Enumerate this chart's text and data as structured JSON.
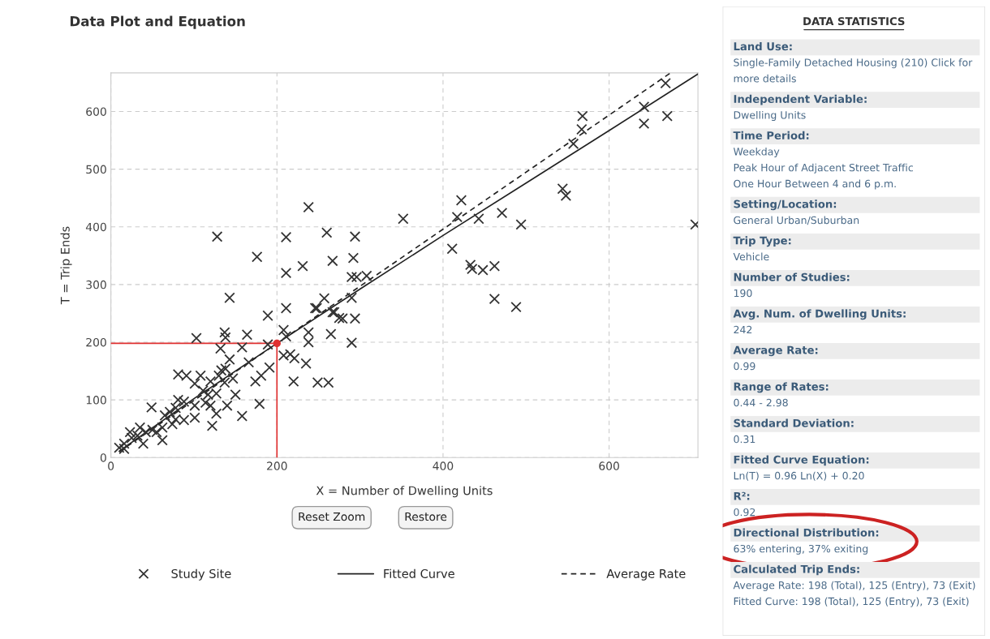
{
  "chart_data": [
    {
      "type": "scatter",
      "title": "Data Plot and Equation",
      "xlabel": "X = Number of Dwelling Units",
      "ylabel": "T = Trip Ends",
      "xlim": [
        0,
        707
      ],
      "ylim": [
        0,
        667
      ],
      "xticks": [
        0,
        200,
        400,
        600
      ],
      "yticks": [
        0,
        100,
        200,
        300,
        400,
        500,
        600
      ],
      "grid": true,
      "legend": "bottom",
      "annotations": [
        "Reset Zoom",
        "Restore"
      ],
      "series": [
        {
          "name": "Study Site",
          "type": "scatter",
          "marker": "cross",
          "color": "#333333",
          "x": [
            128,
            143,
            176,
            211,
            211,
            231,
            238,
            260,
            267,
            292,
            294,
            290,
            296,
            308,
            257,
            290,
            422,
            417,
            443,
            471,
            494,
            352,
            411,
            433,
            435,
            448,
            462,
            462,
            488,
            544,
            548,
            557,
            567,
            568,
            642,
            642,
            668,
            670,
            704,
            189,
            211,
            248,
            267,
            275,
            279,
            294,
            265,
            238,
            238,
            290,
            208,
            211,
            103,
            137,
            138,
            164,
            132,
            158,
            189,
            208,
            216,
            221,
            235,
            220,
            249,
            262,
            143,
            138,
            166,
            181,
            174,
            191,
            179,
            158,
            122,
            81,
            91,
            108,
            130,
            101,
            120,
            137,
            147,
            111,
            117,
            127,
            114,
            120,
            127,
            101,
            81,
            88,
            78,
            71,
            65,
            78,
            74,
            88,
            49,
            62,
            50,
            42,
            32,
            23,
            25,
            16,
            10,
            39,
            55,
            62,
            35,
            16,
            101,
            140,
            150,
            133,
            246,
            269
          ],
          "values": [
            383,
            277,
            348,
            382,
            320,
            332,
            434,
            390,
            341,
            346,
            383,
            313,
            313,
            315,
            276,
            277,
            446,
            417,
            414,
            424,
            404,
            414,
            362,
            334,
            327,
            325,
            332,
            275,
            261,
            466,
            454,
            544,
            569,
            592,
            608,
            579,
            649,
            592,
            404,
            246,
            259,
            259,
            252,
            242,
            241,
            241,
            214,
            217,
            200,
            199,
            221,
            210,
            207,
            217,
            208,
            213,
            189,
            191,
            196,
            177,
            179,
            172,
            163,
            132,
            130,
            130,
            170,
            154,
            165,
            142,
            132,
            156,
            93,
            72,
            55,
            144,
            142,
            142,
            142,
            128,
            132,
            130,
            137,
            116,
            109,
            111,
            95,
            90,
            76,
            69,
            100,
            97,
            86,
            79,
            73,
            66,
            58,
            65,
            87,
            30,
            48,
            44,
            38,
            44,
            34,
            24,
            17,
            24,
            44,
            52,
            52,
            15,
            90,
            90,
            109,
            151,
            259,
            252
          ]
        },
        {
          "name": "Fitted Curve",
          "type": "line",
          "line_style": "solid",
          "color": "#222222",
          "x": [
            10,
            100,
            200,
            300,
            400,
            500,
            600,
            707
          ],
          "values": [
            11,
            102,
            198,
            292,
            385,
            476,
            567,
            665
          ]
        },
        {
          "name": "Average Rate",
          "type": "line",
          "line_style": "dashed",
          "color": "#222222",
          "x": [
            10,
            673
          ],
          "values": [
            10,
            666
          ]
        },
        {
          "type": "line",
          "line_style": "solid",
          "color": "#e03030",
          "x": [
            0,
            200,
            200
          ],
          "values": [
            198,
            198,
            0
          ]
        },
        {
          "type": "scatter",
          "marker": "circle",
          "color": "#e03030",
          "x": [
            200
          ],
          "values": [
            198
          ]
        }
      ]
    },
    {
      "type": "other",
      "title": "DATA STATISTICS",
      "annotations": [
        "Land Use:\nSingle-Family Detached Housing (210) Click for\nmore details",
        "Independent Variable:\nDwelling Units",
        "Time Period:\nWeekday\nPeak Hour of Adjacent Street Traffic\nOne Hour Between 4 and 6 p.m.",
        "Setting/Location:\nGeneral Urban/Suburban",
        "Trip Type:\nVehicle",
        "Number of Studies:\n190",
        "Avg. Num. of Dwelling Units:\n242",
        "Average Rate:\n0.99",
        "Range of Rates:\n0.44 - 2.98",
        "Standard Deviation:\n0.31",
        "Fitted Curve Equation:\nLn(T) = 0.96 Ln(X) + 0.20",
        "R²:\n0.92",
        "Directional Distribution:\n63% entering, 37% exiting",
        "Calculated Trip Ends:\nAverage Rate: 198 (Total), 125 (Entry), 73 (Exit)\nFitted Curve: 198 (Total), 125 (Entry), 73 (Exit)"
      ]
    }
  ]
}
